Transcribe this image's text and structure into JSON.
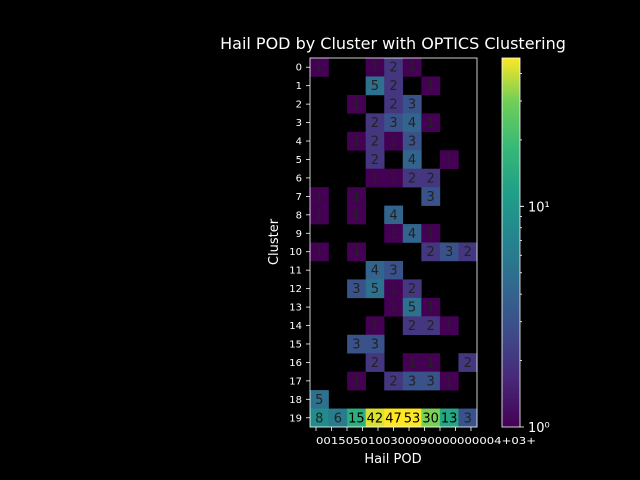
{
  "chart_data": {
    "type": "heatmap",
    "title": "Hail POD by Cluster with OPTICS Clustering",
    "xlabel": "Hail POD",
    "ylabel": "Cluster",
    "x_tick_labels": [
      "0",
      "0.1",
      "0.2",
      "0.3",
      "0.4",
      "0.5",
      "0.6",
      "0.7",
      "0.8",
      "0.9",
      "1.0+"
    ],
    "x_tick_text": "0015050100300090000000004+03+",
    "y_categories": [
      "0",
      "1",
      "2",
      "3",
      "4",
      "5",
      "6",
      "7",
      "8",
      "9",
      "10",
      "11",
      "12",
      "13",
      "14",
      "15",
      "16",
      "17",
      "18",
      "19"
    ],
    "values": [
      [
        1,
        null,
        null,
        1,
        2,
        1,
        null,
        null,
        null
      ],
      [
        null,
        null,
        null,
        5,
        2,
        null,
        1,
        null,
        null
      ],
      [
        null,
        null,
        1,
        null,
        2,
        3,
        null,
        null,
        null
      ],
      [
        null,
        null,
        null,
        2,
        3,
        4,
        1,
        null,
        null
      ],
      [
        null,
        null,
        1,
        2,
        1,
        3,
        null,
        null,
        null
      ],
      [
        null,
        null,
        null,
        2,
        null,
        4,
        null,
        1,
        null
      ],
      [
        null,
        null,
        null,
        1,
        1,
        2,
        2,
        null,
        null
      ],
      [
        1,
        null,
        1,
        null,
        null,
        null,
        3,
        null,
        null
      ],
      [
        1,
        null,
        1,
        null,
        4,
        null,
        null,
        null,
        null
      ],
      [
        null,
        null,
        null,
        null,
        1,
        4,
        1,
        null,
        null
      ],
      [
        1,
        null,
        1,
        null,
        null,
        null,
        2,
        3,
        2
      ],
      [
        null,
        null,
        null,
        4,
        3,
        null,
        null,
        null,
        null
      ],
      [
        null,
        null,
        3,
        5,
        1,
        2,
        null,
        null,
        null
      ],
      [
        null,
        null,
        null,
        null,
        1,
        5,
        1,
        null,
        null
      ],
      [
        null,
        null,
        null,
        1,
        null,
        2,
        2,
        1,
        null
      ],
      [
        null,
        null,
        3,
        3,
        null,
        null,
        null,
        null,
        null
      ],
      [
        null,
        null,
        null,
        2,
        null,
        1,
        1,
        null,
        2
      ],
      [
        null,
        null,
        1,
        null,
        2,
        3,
        3,
        1,
        null
      ],
      [
        5,
        null,
        null,
        null,
        null,
        null,
        null,
        null,
        null
      ],
      [
        8,
        6,
        15,
        42,
        47,
        53,
        30,
        13,
        3
      ]
    ],
    "colorbar": {
      "scale": "log",
      "range": [
        1,
        47
      ],
      "ticks": [
        "10⁰",
        "10¹"
      ],
      "colormap": "viridis"
    },
    "colors": {
      "background": "#000000",
      "foreground": "#ffffff"
    }
  }
}
